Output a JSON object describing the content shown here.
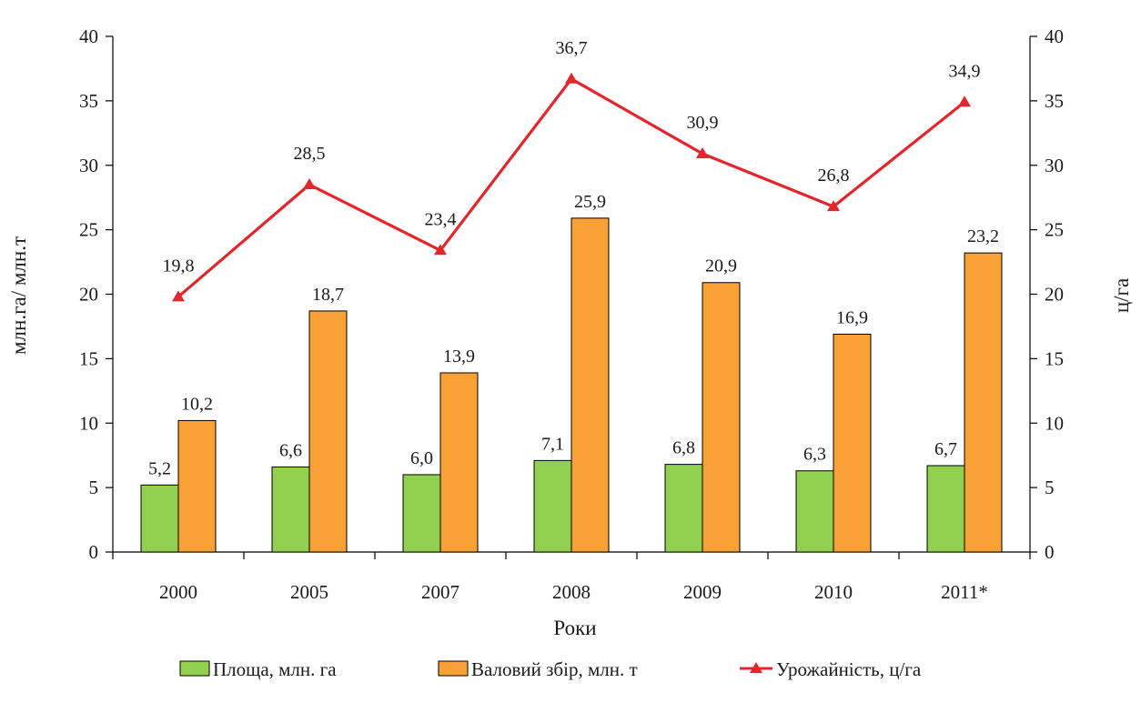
{
  "chart_data": {
    "type": "bar",
    "categories": [
      "2000",
      "2005",
      "2007",
      "2008",
      "2009",
      "2010",
      "2011*"
    ],
    "series": [
      {
        "name": "Площа, млн. га",
        "type": "bar",
        "axis": "left",
        "color": "#92d050",
        "values": [
          5.2,
          6.6,
          6.0,
          7.1,
          6.8,
          6.3,
          6.7
        ],
        "labels": [
          "5,2",
          "6,6",
          "6,0",
          "7,1",
          "6,8",
          "6,3",
          "6,7"
        ]
      },
      {
        "name": "Валовий збір, млн. т",
        "type": "bar",
        "axis": "left",
        "color": "#f9a037",
        "values": [
          10.2,
          18.7,
          13.9,
          25.9,
          20.9,
          16.9,
          23.2
        ],
        "labels": [
          "10,2",
          "18,7",
          "13,9",
          "25,9",
          "20,9",
          "16,9",
          "23,2"
        ]
      },
      {
        "name": "Урожайність, ц/га",
        "type": "line",
        "axis": "right",
        "color": "#e3262c",
        "marker": "triangle",
        "values": [
          19.8,
          28.5,
          23.4,
          36.7,
          30.9,
          26.8,
          34.9
        ],
        "labels": [
          "19,8",
          "28,5",
          "23,4",
          "36,7",
          "30,9",
          "26,8",
          "34,9"
        ]
      }
    ],
    "xlabel": "Роки",
    "ylabel": "млн.га/ млн.т",
    "y2label": "ц/га",
    "ylim": [
      0,
      40
    ],
    "y2lim": [
      0,
      40
    ],
    "yticks": [
      "0",
      "5",
      "10",
      "15",
      "20",
      "25",
      "30",
      "35",
      "40"
    ],
    "grid": false,
    "legend_position": "bottom"
  }
}
